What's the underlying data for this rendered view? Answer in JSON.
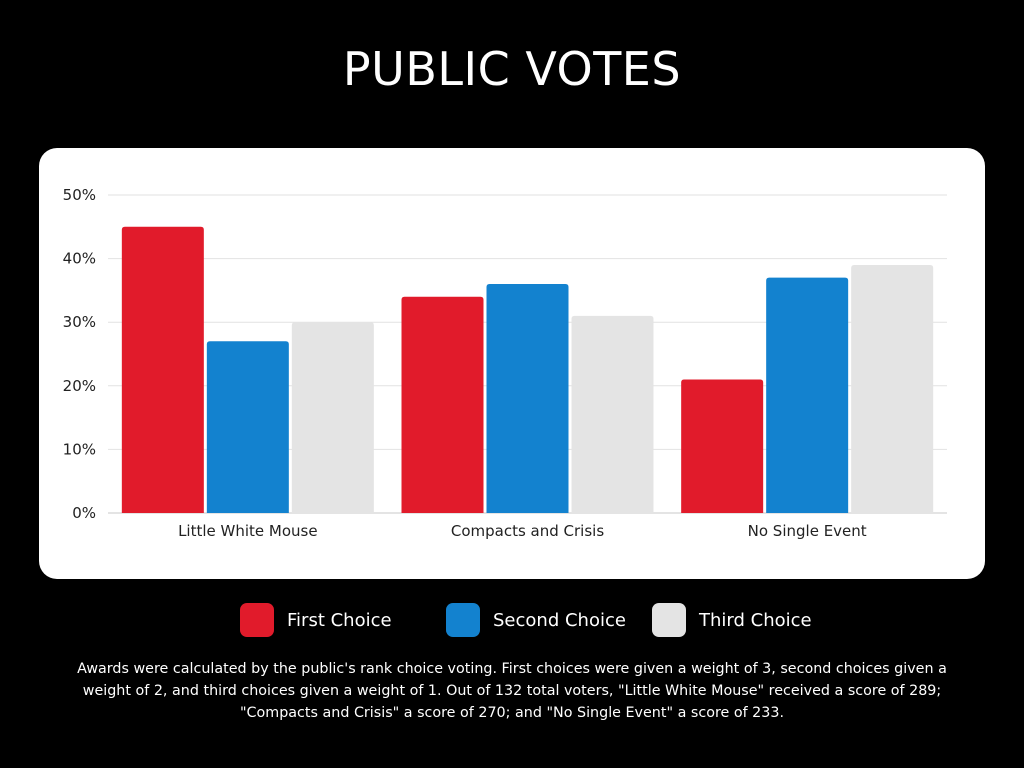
{
  "title": "PUBLIC VOTES",
  "chart_data": {
    "type": "bar",
    "categories": [
      "Little White Mouse",
      "Compacts and Crisis",
      "No Single Event"
    ],
    "series": [
      {
        "name": "First Choice",
        "values": [
          45,
          34,
          21
        ],
        "color": "#E11B2B"
      },
      {
        "name": "Second Choice",
        "values": [
          27,
          36,
          37
        ],
        "color": "#1382CF"
      },
      {
        "name": "Third Choice",
        "values": [
          30,
          31,
          39
        ],
        "color": "#E4E4E4"
      }
    ],
    "yticks": [
      "0%",
      "10%",
      "20%",
      "30%",
      "40%",
      "50%"
    ],
    "ylim": [
      0,
      50
    ],
    "grid": true,
    "legend_position": "bottom"
  },
  "note": "Awards were calculated by the public's rank choice voting. First choices were given a weight of 3, second choices given a weight of 2, and third choices given a weight of 1. Out of 132 total voters, \"Little White Mouse\" received a score of 289; \"Compacts and Crisis\" a score of 270; and \"No Single Event\" a score of 233."
}
